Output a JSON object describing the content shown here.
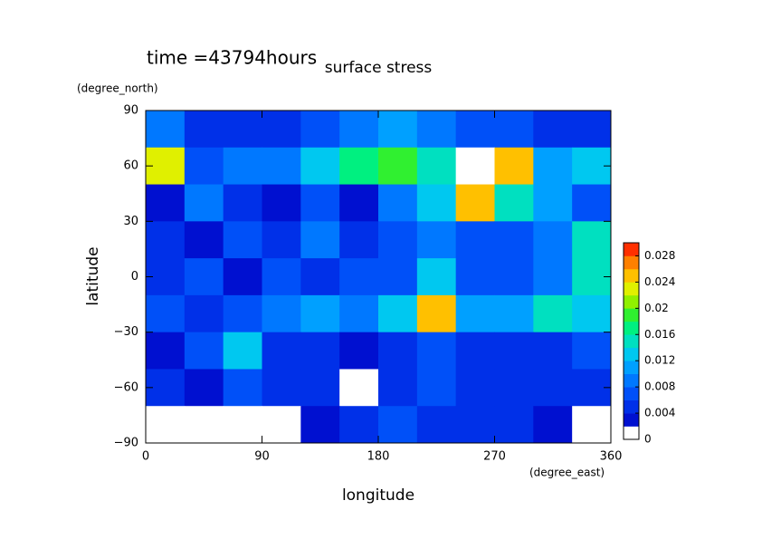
{
  "chart_data": {
    "type": "contour",
    "title": "surface stress",
    "subtitle": "time =43794hours",
    "x_label": "longitude",
    "y_label": "latitude",
    "x_unit": "(degree_east)",
    "y_unit": "(degree_north)",
    "x": [
      15,
      45,
      75,
      105,
      135,
      165,
      195,
      225,
      255,
      285,
      315,
      345
    ],
    "y": [
      80,
      60,
      40,
      20,
      0,
      -20,
      -40,
      -60,
      -80
    ],
    "z": [
      [
        0.008,
        0.004,
        0.004,
        0.004,
        0.006,
        0.008,
        0.01,
        0.008,
        0.006,
        0.006,
        0.004,
        0.004
      ],
      [
        0.022,
        0.006,
        0.008,
        0.008,
        0.012,
        0.016,
        0.018,
        0.014,
        0.001,
        0.024,
        0.01,
        0.012
      ],
      [
        0.002,
        0.008,
        0.004,
        0.002,
        0.006,
        0.002,
        0.008,
        0.012,
        0.024,
        0.014,
        0.01,
        0.006
      ],
      [
        0.004,
        0.002,
        0.006,
        0.004,
        0.008,
        0.004,
        0.006,
        0.008,
        0.006,
        0.006,
        0.008,
        0.014
      ],
      [
        0.004,
        0.006,
        0.002,
        0.006,
        0.004,
        0.006,
        0.006,
        0.012,
        0.006,
        0.006,
        0.008,
        0.014
      ],
      [
        0.006,
        0.004,
        0.006,
        0.008,
        0.01,
        0.008,
        0.012,
        0.024,
        0.01,
        0.01,
        0.014,
        0.012
      ],
      [
        0.002,
        0.006,
        0.012,
        0.004,
        0.004,
        0.002,
        0.004,
        0.006,
        0.004,
        0.004,
        0.004,
        0.006
      ],
      [
        0.004,
        0.002,
        0.006,
        0.004,
        0.004,
        0.001,
        0.004,
        0.006,
        0.004,
        0.004,
        0.004,
        0.004
      ],
      [
        0,
        0,
        0,
        0,
        0.002,
        0.004,
        0.006,
        0.004,
        0.004,
        0.004,
        0.002,
        0
      ]
    ],
    "xlim": [
      0,
      360
    ],
    "xticks": [
      0,
      90,
      180,
      270,
      360
    ],
    "ylim": [
      -90,
      90
    ],
    "yticks": [
      90,
      60,
      30,
      0,
      {
        "value": -30,
        "label": "−30"
      },
      {
        "value": -60,
        "label": "−60"
      },
      {
        "value": -90,
        "label": "−90"
      }
    ],
    "zlim": [
      0,
      0.03
    ],
    "zticks": [
      0,
      0.004,
      0.008,
      0.012,
      0.016,
      0.02,
      0.024,
      0.028
    ],
    "colors": [
      "#ffffff",
      "#0010d0",
      "#0030e8",
      "#0050f8",
      "#0078ff",
      "#00a0ff",
      "#00c8f0",
      "#00e0c0",
      "#00f080",
      "#30f030",
      "#90f000",
      "#e0f000",
      "#ffc000",
      "#ff8000",
      "#ff3000"
    ]
  }
}
